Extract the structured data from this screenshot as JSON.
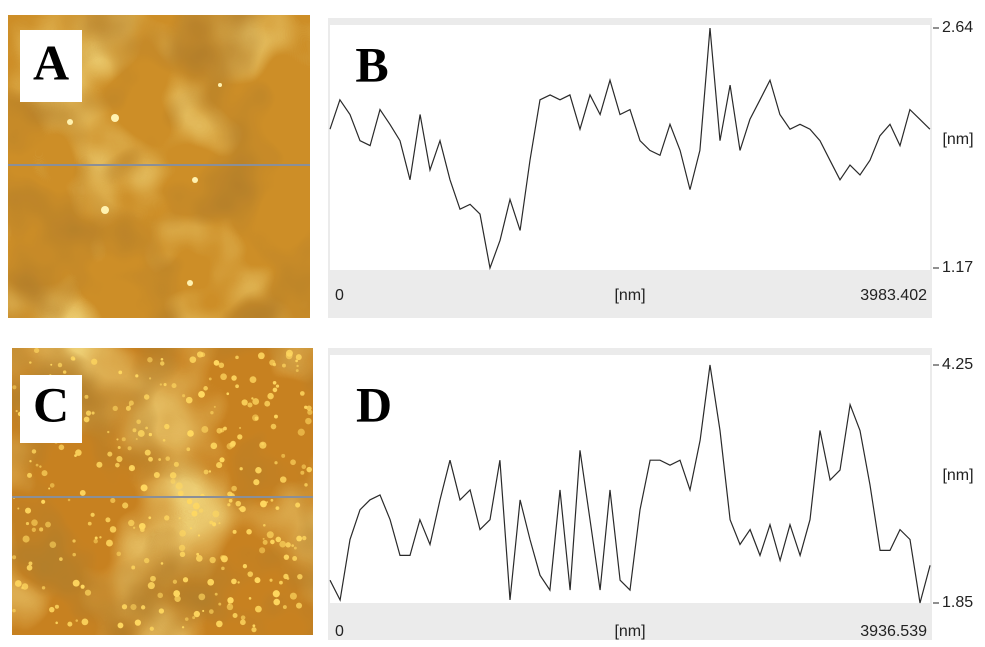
{
  "panel_labels": [
    "A",
    "B",
    "C",
    "D"
  ],
  "chart_data": [
    {
      "type": "line",
      "color": "#2a2a2a",
      "xlabel": "[nm]",
      "ylabel": "[nm]",
      "xlim": [
        0,
        3983.402
      ],
      "xticks": [
        0,
        3983.402
      ],
      "ylim": [
        1.17,
        2.64
      ],
      "yticks": [
        1.17,
        2.64
      ],
      "x": [
        0,
        66,
        133,
        199,
        266,
        332,
        398,
        465,
        531,
        598,
        664,
        730,
        797,
        863,
        930,
        996,
        1062,
        1129,
        1195,
        1262,
        1328,
        1394,
        1461,
        1527,
        1593,
        1660,
        1726,
        1793,
        1859,
        1925,
        1992,
        2058,
        2124,
        2191,
        2257,
        2324,
        2390,
        2456,
        2523,
        2589,
        2656,
        2722,
        2788,
        2855,
        2921,
        2987,
        3054,
        3120,
        3187,
        3253,
        3319,
        3386,
        3452,
        3519,
        3585,
        3651,
        3718,
        3784,
        3850,
        3917,
        3983
      ],
      "values": [
        2.02,
        2.2,
        2.11,
        1.95,
        1.92,
        2.14,
        2.05,
        1.95,
        1.71,
        2.11,
        1.77,
        1.95,
        1.71,
        1.53,
        1.56,
        1.5,
        1.17,
        1.34,
        1.59,
        1.4,
        1.83,
        2.2,
        2.23,
        2.2,
        2.23,
        2.02,
        2.23,
        2.11,
        2.32,
        2.11,
        2.14,
        1.95,
        1.89,
        1.86,
        2.05,
        1.89,
        1.65,
        1.89,
        2.64,
        1.95,
        2.29,
        1.89,
        2.08,
        2.2,
        2.32,
        2.11,
        2.02,
        2.05,
        2.02,
        1.95,
        1.83,
        1.71,
        1.8,
        1.74,
        1.83,
        1.98,
        2.05,
        1.92,
        2.14,
        2.08,
        2.02
      ]
    },
    {
      "type": "line",
      "color": "#2a2a2a",
      "xlabel": "[nm]",
      "ylabel": "[nm]",
      "xlim": [
        0,
        3936.539
      ],
      "xticks": [
        0,
        3936.539
      ],
      "ylim": [
        1.85,
        4.25
      ],
      "yticks": [
        1.85,
        4.25
      ],
      "x": [
        0,
        66,
        131,
        197,
        262,
        328,
        394,
        459,
        525,
        590,
        656,
        722,
        787,
        853,
        919,
        984,
        1050,
        1115,
        1181,
        1247,
        1312,
        1378,
        1443,
        1509,
        1575,
        1640,
        1706,
        1772,
        1837,
        1903,
        1968,
        2034,
        2100,
        2165,
        2231,
        2296,
        2362,
        2428,
        2493,
        2559,
        2625,
        2690,
        2756,
        2821,
        2887,
        2953,
        3018,
        3084,
        3149,
        3215,
        3281,
        3346,
        3412,
        3477,
        3543,
        3609,
        3674,
        3740,
        3805,
        3871,
        3937
      ],
      "values": [
        2.08,
        1.88,
        2.49,
        2.79,
        2.89,
        2.94,
        2.69,
        2.33,
        2.33,
        2.69,
        2.44,
        2.89,
        3.29,
        2.89,
        2.99,
        2.59,
        2.69,
        3.29,
        1.88,
        2.89,
        2.49,
        2.13,
        1.98,
        2.99,
        1.98,
        3.39,
        2.69,
        1.98,
        2.99,
        2.08,
        1.98,
        2.79,
        3.29,
        3.29,
        3.24,
        3.29,
        2.99,
        3.49,
        4.25,
        3.59,
        2.69,
        2.44,
        2.59,
        2.33,
        2.64,
        2.28,
        2.64,
        2.33,
        2.69,
        3.59,
        3.09,
        3.19,
        3.85,
        3.59,
        3.04,
        2.38,
        2.38,
        2.59,
        2.49,
        1.85,
        2.23
      ]
    }
  ]
}
